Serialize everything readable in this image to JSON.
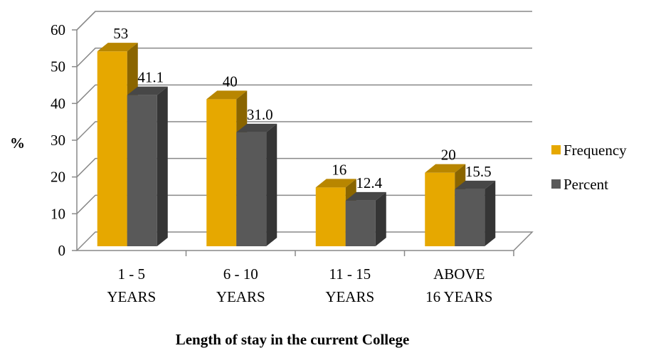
{
  "chart_data": {
    "type": "bar",
    "title": "",
    "xlabel": "Length of stay in the current College",
    "ylabel": "%",
    "ylim": [
      0,
      60
    ],
    "yticks": [
      0,
      10,
      20,
      30,
      40,
      50,
      60
    ],
    "categories": [
      [
        "1 - 5",
        "YEARS"
      ],
      [
        "6 - 10",
        "YEARS"
      ],
      [
        "11 - 15",
        "YEARS"
      ],
      [
        "ABOVE",
        "16 YEARS"
      ]
    ],
    "series": [
      {
        "name": "Frequency",
        "values": [
          53,
          40,
          16,
          20
        ],
        "labels": [
          "53",
          "40",
          "16",
          "20"
        ],
        "color": "#E6A800"
      },
      {
        "name": "Percent",
        "values": [
          41.1,
          31.0,
          12.4,
          15.5
        ],
        "labels": [
          "41.1",
          "31.0",
          "12.4",
          "15.5"
        ],
        "color": "#595959"
      }
    ],
    "grid": true,
    "legend_position": "right",
    "style": "3d-column"
  }
}
